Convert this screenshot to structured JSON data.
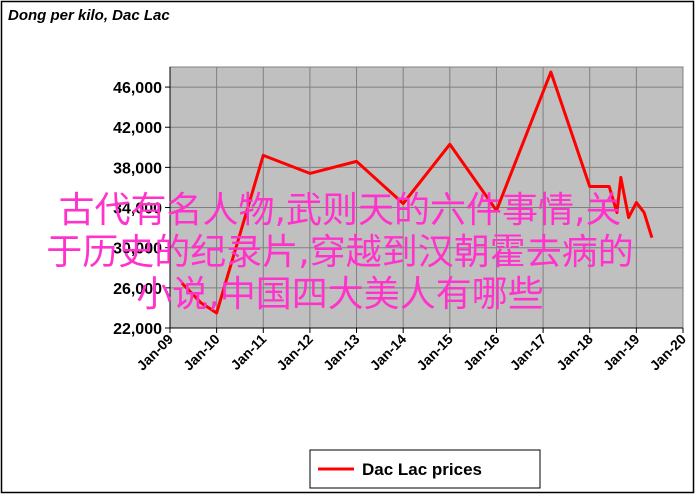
{
  "chart_data": {
    "type": "line",
    "title": "Dong per kilo, Dac Lac",
    "x": [
      "Apr-09",
      "Sep-09",
      "Jan-10",
      "Jan-11",
      "Jan-12",
      "Jan-13",
      "Jan-14",
      "Jan-15",
      "Jan-16",
      "Mar-17",
      "Jan-18",
      "Jun-18",
      "Aug-18",
      "Sep-18",
      "Nov-18",
      "Jan-19",
      "Mar-19",
      "May-19"
    ],
    "series": [
      {
        "name": "Dac Lac prices",
        "color": "#ff0000",
        "values": [
          26500,
          24500,
          23500,
          39200,
          37400,
          38600,
          34400,
          40300,
          33700,
          47500,
          36100,
          36100,
          33500,
          37000,
          33000,
          34500,
          33500,
          31000
        ]
      }
    ],
    "xlim": [
      "Jan-09",
      "Jan-20"
    ],
    "xticks": [
      "Jan-09",
      "Jan-10",
      "Jan-11",
      "Jan-12",
      "Jan-13",
      "Jan-14",
      "Jan-15",
      "Jan-16",
      "Jan-17",
      "Jan-18",
      "Jan-19",
      "Jan-20"
    ],
    "ylim": [
      22000,
      48000
    ],
    "yticks": [
      {
        "value": 22000,
        "label": "22,000"
      },
      {
        "value": 26000,
        "label": "26,000"
      },
      {
        "value": 30000,
        "label": "30,000"
      },
      {
        "value": 34000,
        "label": "34,000"
      },
      {
        "value": 38000,
        "label": "38,000"
      },
      {
        "value": 42000,
        "label": "42,000"
      },
      {
        "value": 46000,
        "label": "46,000"
      }
    ],
    "grid": true,
    "background": "#c0c0c0",
    "legend": "bottom"
  },
  "watermark_lines": [
    "古代有名人物,武则天的六件事情,关",
    "于历史的纪录片,穿越到汉朝霍去病的",
    "小说,中国四大美人有哪些"
  ]
}
